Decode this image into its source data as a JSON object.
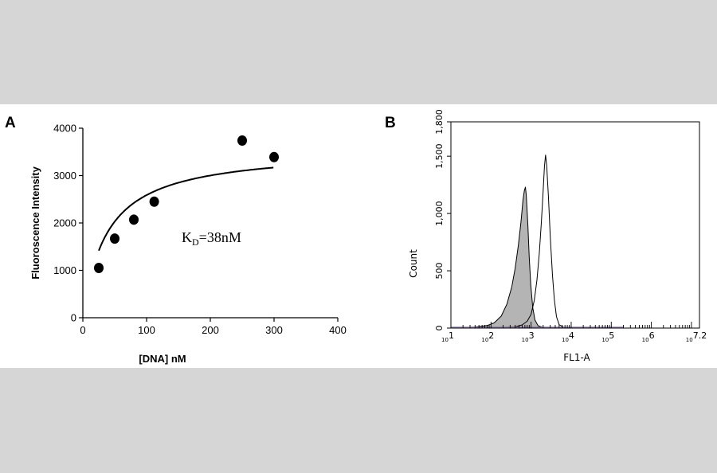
{
  "chart_data": [
    {
      "panel": "A",
      "type": "scatter",
      "xlabel": "[DNA] nM",
      "ylabel": "Fluoroscence Intensity",
      "xlim": [
        0,
        400
      ],
      "ylim": [
        0,
        4000
      ],
      "xticks": [
        0,
        100,
        200,
        300,
        400
      ],
      "yticks": [
        0,
        1000,
        2000,
        3000,
        4000
      ],
      "grid": false,
      "points": [
        {
          "x": 25,
          "y": 1050
        },
        {
          "x": 50,
          "y": 1670
        },
        {
          "x": 80,
          "y": 2070
        },
        {
          "x": 112,
          "y": 2450
        },
        {
          "x": 250,
          "y": 3740
        },
        {
          "x": 300,
          "y": 3390
        }
      ],
      "fit": {
        "model": "saturation binding",
        "kd": 38
      },
      "annotation": {
        "main": "K",
        "sub": "D",
        "rest": "=38nM"
      }
    },
    {
      "panel": "B",
      "type": "area",
      "xlabel": "FL1-A",
      "ylabel": "Count",
      "xscale": "log",
      "xlim": [
        10,
        15848932
      ],
      "ylim": [
        0,
        1800
      ],
      "xticks": [
        {
          "value": 10,
          "base": "10",
          "exp": "1"
        },
        {
          "value": 100,
          "base": "10",
          "exp": "2"
        },
        {
          "value": 1000,
          "base": "10",
          "exp": "3"
        },
        {
          "value": 10000,
          "base": "10",
          "exp": "4"
        },
        {
          "value": 100000,
          "base": "10",
          "exp": "5"
        },
        {
          "value": 1000000,
          "base": "10",
          "exp": "6"
        },
        {
          "value": 15848932,
          "base": "10",
          "exp": "7.2"
        }
      ],
      "yticks": [
        {
          "value": 0,
          "label": "0"
        },
        {
          "value": 500,
          "label": "500"
        },
        {
          "value": 1000,
          "label": "1,000"
        },
        {
          "value": 1500,
          "label": "1,500"
        },
        {
          "value": 1800,
          "label": "1,800"
        }
      ],
      "series": [
        {
          "fill": "#b4b4b4",
          "peak_x": 700,
          "peak_y": 1240,
          "points": [
            [
              10,
              2
            ],
            [
              40,
              8
            ],
            [
              80,
              22
            ],
            [
              120,
              45
            ],
            [
              180,
              105
            ],
            [
              250,
              210
            ],
            [
              330,
              360
            ],
            [
              400,
              520
            ],
            [
              480,
              720
            ],
            [
              560,
              930
            ],
            [
              630,
              1120
            ],
            [
              680,
              1200
            ],
            [
              720,
              1230
            ],
            [
              760,
              1160
            ],
            [
              830,
              900
            ],
            [
              900,
              620
            ],
            [
              980,
              380
            ],
            [
              1100,
              180
            ],
            [
              1250,
              70
            ],
            [
              1500,
              20
            ],
            [
              2000,
              4
            ]
          ]
        },
        {
          "fill": "none",
          "peak_x": 2300,
          "peak_y": 1510,
          "points": [
            [
              10,
              2
            ],
            [
              150,
              4
            ],
            [
              400,
              10
            ],
            [
              600,
              28
            ],
            [
              800,
              60
            ],
            [
              1000,
              120
            ],
            [
              1200,
              240
            ],
            [
              1400,
              420
            ],
            [
              1600,
              650
            ],
            [
              1800,
              920
            ],
            [
              2000,
              1200
            ],
            [
              2150,
              1410
            ],
            [
              2300,
              1510
            ],
            [
              2450,
              1420
            ],
            [
              2700,
              1150
            ],
            [
              3000,
              800
            ],
            [
              3400,
              470
            ],
            [
              3800,
              250
            ],
            [
              4300,
              100
            ],
            [
              5000,
              30
            ],
            [
              6500,
              6
            ],
            [
              9000,
              2
            ]
          ]
        }
      ]
    }
  ],
  "colors": {
    "dot": "#000000",
    "filled_histogram": "#b4b4b4",
    "line": "#000000",
    "baseline": "#7a6a9a"
  }
}
